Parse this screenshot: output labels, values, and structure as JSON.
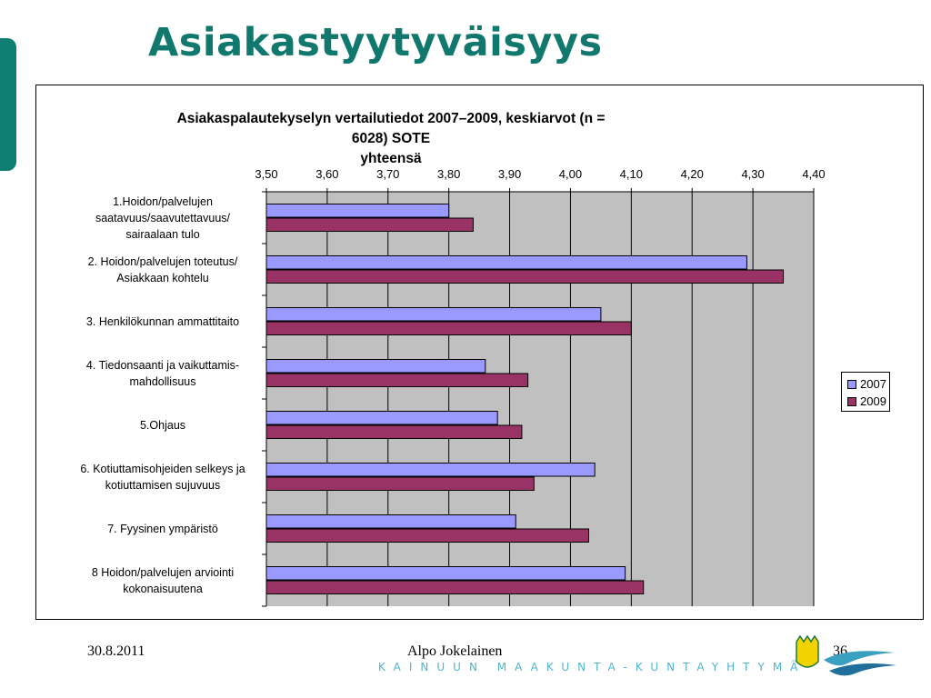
{
  "slide": {
    "title": "Asiakastyytyväisyys",
    "footer_date": "30.8.2011",
    "footer_author": "Alpo Jokelainen",
    "footer_page": "36",
    "footer_strip": "KAINUUN MAAKUNTA-KUNTAYHTYMÄ",
    "accent_color": "#10786d"
  },
  "chart_data": {
    "type": "bar",
    "orientation": "horizontal",
    "title_lines": [
      "Asiakaspalautekyselyn vertailutiedot 2007–2009, keskiarvot (n = 6028) SOTE",
      "yhteensä"
    ],
    "xlim": [
      3.5,
      4.4
    ],
    "ticks": [
      "3,50",
      "3,60",
      "3,70",
      "3,80",
      "3,90",
      "4,00",
      "4,10",
      "4,20",
      "4,30",
      "4,40"
    ],
    "tick_values": [
      3.5,
      3.6,
      3.7,
      3.8,
      3.9,
      4.0,
      4.1,
      4.2,
      4.3,
      4.4
    ],
    "x_axis_position": "top",
    "grid": true,
    "legend_position": "right",
    "plot_background": "#c0c0c0",
    "categories": [
      [
        "1.Hoidon/palvelujen",
        "saatavuus/saavutettavuus/",
        "sairaalaan tulo"
      ],
      [
        "2. Hoidon/palvelujen toteutus/",
        "Asiakkaan kohtelu"
      ],
      [
        "3. Henkilökunnan ammattitaito"
      ],
      [
        "4. Tiedonsaanti ja vaikuttamis-",
        "mahdollisuus"
      ],
      [
        "5.Ohjaus"
      ],
      [
        "6. Kotiuttamisohjeiden selkeys ja",
        "kotiuttamisen sujuvuus"
      ],
      [
        "7. Fyysinen ympäristö"
      ],
      [
        "8 Hoidon/palvelujen arviointi",
        "kokonaisuutena"
      ]
    ],
    "series": [
      {
        "name": "2007",
        "color": "#9999ff",
        "values": [
          3.8,
          4.29,
          4.05,
          3.86,
          3.88,
          4.04,
          3.91,
          4.09
        ]
      },
      {
        "name": "2009",
        "color": "#993366",
        "values": [
          3.84,
          4.35,
          4.1,
          3.93,
          3.92,
          3.94,
          4.03,
          4.12
        ]
      }
    ]
  }
}
